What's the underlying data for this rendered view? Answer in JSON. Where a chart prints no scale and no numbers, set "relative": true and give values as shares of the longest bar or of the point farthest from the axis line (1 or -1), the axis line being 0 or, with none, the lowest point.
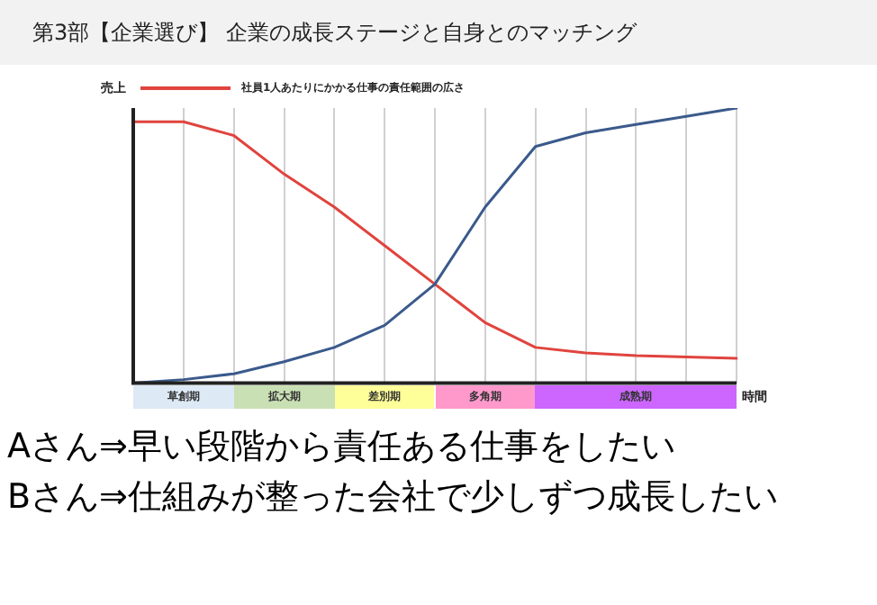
{
  "chart_data": {
    "type": "line",
    "title": "第3部【企業選び】 企業の成長ステージと自身とのマッチング",
    "ylabel": "売上",
    "xlabel": "時間",
    "relative": true,
    "categories": [
      null,
      "草創期",
      null,
      "拡大期",
      null,
      "差別期",
      null,
      "多角期",
      null,
      null,
      "成熟期",
      null,
      null
    ],
    "tick_labels": "x",
    "grid": "x",
    "legend": "top left",
    "marker": "none",
    "line_style": "solid",
    "series": [
      {
        "color": "#3b5a8c",
        "values": [
          0,
          0.013,
          0.034,
          0.078,
          0.13,
          0.21,
          0.36,
          0.64,
          0.86,
          0.91,
          0.94,
          0.97,
          1
        ]
      },
      {
        "name": "社員1人あたりにかかる仕事の責任範囲の広さ",
        "color": "#e0443e",
        "values": [
          0.95,
          0.95,
          0.9,
          0.76,
          0.64,
          0.5,
          0.36,
          0.22,
          0.13,
          0.11,
          0.1,
          0.095,
          0.09
        ]
      }
    ],
    "annotations": [
      "Aさん⇒早い段階から責任ある仕事をしたい",
      "Bさん⇒仕組みが整った会社で少しずつ成長したい"
    ]
  }
}
